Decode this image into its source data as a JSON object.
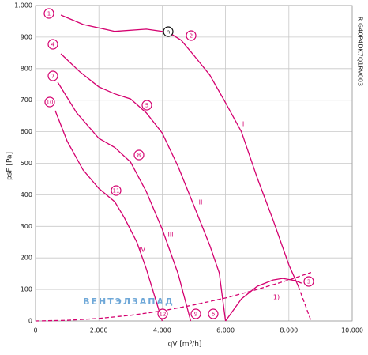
{
  "chart_data": {
    "type": "line",
    "xlabel": "qV [m³/h]",
    "ylabel": "psF [Pa]",
    "code": "R G40P4DK7Q1RV003",
    "watermark": "ВЕНТЭЛЗАПАД",
    "grid": true,
    "color": "#d4006f",
    "xlim": [
      0,
      10000
    ],
    "ylim": [
      0,
      1000
    ],
    "xticks": [
      0,
      {
        "value": 2000,
        "label": "2.000"
      },
      {
        "value": 4000,
        "label": "4.000"
      },
      {
        "value": 6000,
        "label": "6.000"
      },
      {
        "value": 8000,
        "label": "8.000"
      },
      {
        "value": 10000,
        "label": "10.000"
      }
    ],
    "yticks": [
      0,
      100,
      200,
      300,
      400,
      500,
      600,
      700,
      800,
      900,
      {
        "value": 1000,
        "label": "1.000"
      }
    ],
    "series": [
      {
        "name": "I",
        "x": [
          800,
          1500,
          2500,
          3500,
          4200,
          4600,
          5000,
          5500,
          6000,
          6500,
          7000,
          7500,
          8000,
          8300
        ],
        "values": [
          970,
          940,
          918,
          925,
          915,
          890,
          842,
          780,
          692,
          600,
          454,
          320,
          178,
          110
        ]
      },
      {
        "x": [
          8300,
          8700
        ],
        "values": [
          110,
          0
        ],
        "dashed": true
      },
      {
        "name": "II",
        "x": [
          800,
          1400,
          2000,
          2500,
          3000,
          3500,
          4000,
          4500,
          5000,
          5500,
          5800,
          6000
        ],
        "values": [
          847,
          790,
          742,
          720,
          704,
          660,
          596,
          490,
          366,
          240,
          153,
          0
        ]
      },
      {
        "name": "III",
        "x": [
          700,
          1300,
          2000,
          2500,
          3000,
          3500,
          4000,
          4500,
          4900
        ],
        "values": [
          757,
          660,
          579,
          550,
          504,
          410,
          291,
          150,
          0
        ]
      },
      {
        "name": "IV",
        "x": [
          620,
          1000,
          1500,
          2000,
          2500,
          2800,
          3200,
          3500,
          4000
        ],
        "values": [
          667,
          570,
          479,
          420,
          378,
          328,
          250,
          165,
          0
        ]
      },
      {
        "name": "1)",
        "x": [
          6000,
          6500,
          7000,
          7500,
          7800,
          8200,
          8400
        ],
        "values": [
          0,
          70,
          110,
          130,
          135,
          128,
          120
        ]
      },
      {
        "x": [
          0,
          1000,
          2000,
          3000,
          4000,
          5000,
          6000,
          7000,
          8000,
          8700
        ],
        "values": [
          0,
          2,
          8,
          18,
          32,
          51,
          73,
          100,
          130,
          154
        ],
        "dashed": true
      }
    ],
    "annotations": [
      "1",
      "2",
      "3",
      "4",
      "5",
      "6",
      "7",
      "8",
      "9",
      "10",
      "11",
      "12",
      "n"
    ]
  }
}
